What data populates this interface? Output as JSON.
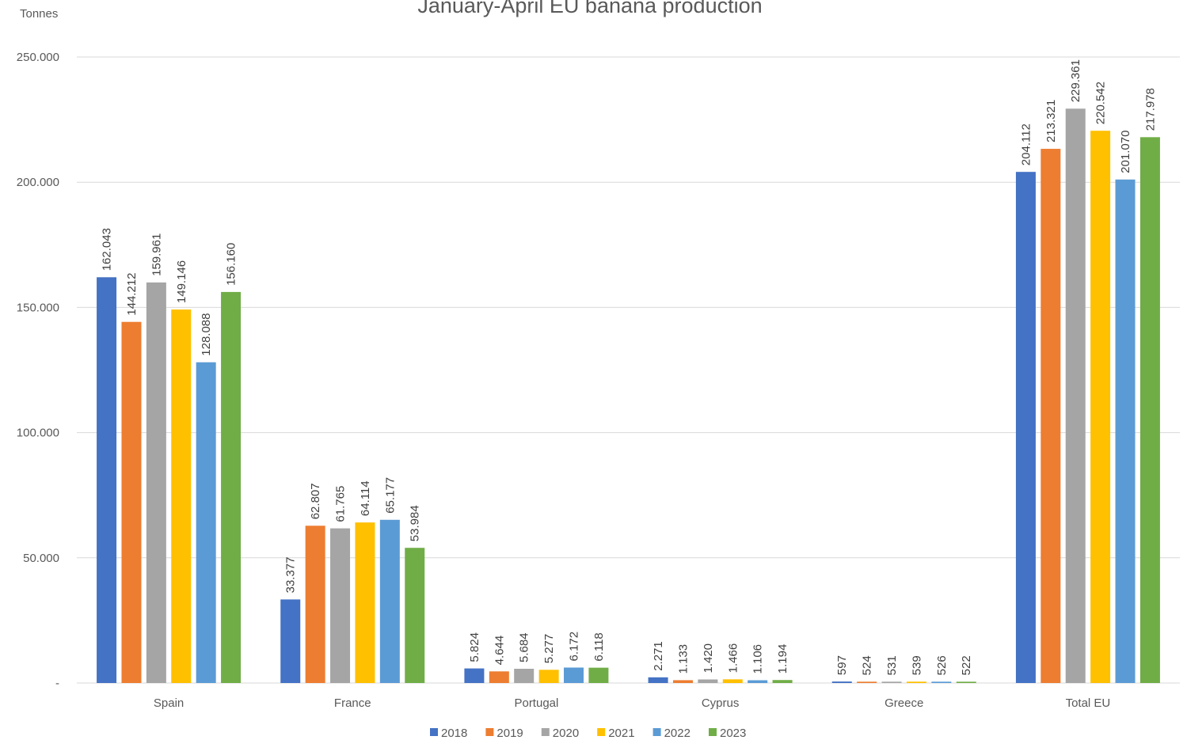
{
  "chart_data": {
    "type": "bar",
    "title": "January-April EU banana production",
    "ylabel": "Tonnes",
    "xlabel": "",
    "ylim": [
      0,
      250000
    ],
    "yticks": [
      "-",
      "50.000",
      "100.000",
      "150.000",
      "200.000",
      "250.000"
    ],
    "grid": true,
    "legend_position": "bottom",
    "categories": [
      "Spain",
      "France",
      "Portugal",
      "Cyprus",
      "Greece",
      "Total EU"
    ],
    "series": [
      {
        "name": "2018",
        "color": "#4472c4",
        "values": [
          162043,
          33377,
          5824,
          2271,
          597,
          204112
        ],
        "labels": [
          "162.043",
          "33.377",
          "5.824",
          "2.271",
          "597",
          "204.112"
        ]
      },
      {
        "name": "2019",
        "color": "#ed7d31",
        "values": [
          144212,
          62807,
          4644,
          1133,
          524,
          213321
        ],
        "labels": [
          "144.212",
          "62.807",
          "4.644",
          "1.133",
          "524",
          "213.321"
        ]
      },
      {
        "name": "2020",
        "color": "#a5a5a5",
        "values": [
          159961,
          61765,
          5684,
          1420,
          531,
          229361
        ],
        "labels": [
          "159.961",
          "61.765",
          "5.684",
          "1.420",
          "531",
          "229.361"
        ]
      },
      {
        "name": "2021",
        "color": "#ffc000",
        "values": [
          149146,
          64114,
          5277,
          1466,
          539,
          220542
        ],
        "labels": [
          "149.146",
          "64.114",
          "5.277",
          "1.466",
          "539",
          "220.542"
        ]
      },
      {
        "name": "2022",
        "color": "#5b9bd5",
        "values": [
          128088,
          65177,
          6172,
          1106,
          526,
          201070
        ],
        "labels": [
          "128.088",
          "65.177",
          "6.172",
          "1.106",
          "526",
          "201.070"
        ]
      },
      {
        "name": "2023",
        "color": "#70ad47",
        "values": [
          156160,
          53984,
          6118,
          1194,
          522,
          217978
        ],
        "labels": [
          "156.160",
          "53.984",
          "6.118",
          "1.194",
          "522",
          "217.978"
        ]
      }
    ]
  }
}
